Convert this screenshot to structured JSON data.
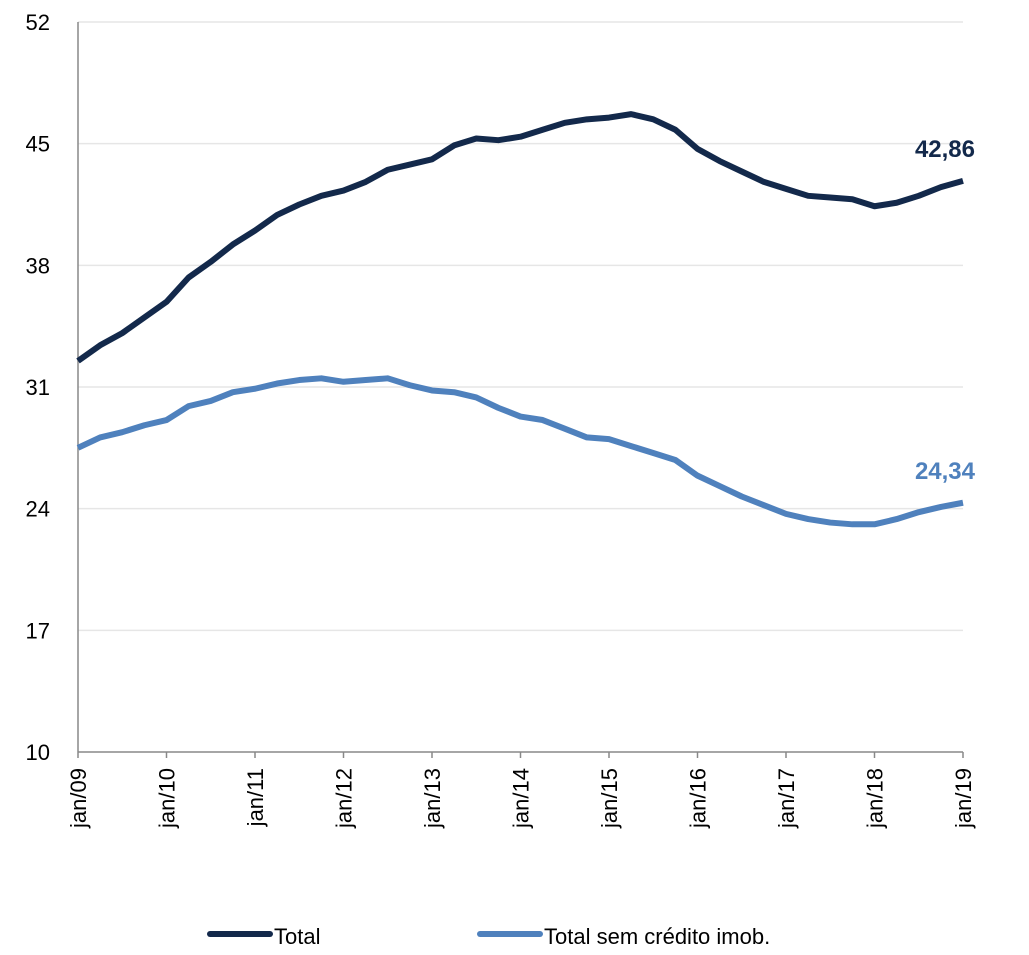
{
  "chart_data": {
    "type": "line",
    "categories": [
      "jan/09",
      null,
      null,
      null,
      "jan/10",
      null,
      null,
      null,
      "jan/11",
      null,
      null,
      null,
      "jan/12",
      null,
      null,
      null,
      "jan/13",
      null,
      null,
      null,
      "jan/14",
      null,
      null,
      null,
      "jan/15",
      null,
      null,
      null,
      "jan/16",
      null,
      null,
      null,
      "jan/17",
      null,
      null,
      null,
      "jan/18",
      null,
      null,
      null,
      "jan/19"
    ],
    "series": [
      {
        "name": "Total",
        "color": "#13294b",
        "values": [
          32.5,
          33.4,
          34.1,
          35.0,
          35.9,
          37.3,
          38.2,
          39.2,
          40.0,
          40.9,
          41.5,
          42.0,
          42.3,
          42.8,
          43.5,
          43.8,
          44.1,
          44.9,
          45.3,
          45.2,
          45.4,
          45.8,
          46.2,
          46.4,
          46.5,
          46.7,
          46.4,
          45.8,
          44.7,
          44.0,
          43.4,
          42.8,
          42.4,
          42.0,
          41.9,
          41.8,
          41.4,
          41.6,
          42.0,
          42.5,
          42.86
        ],
        "value_labels": [
          null,
          null,
          null,
          null,
          null,
          null,
          null,
          null,
          null,
          null,
          null,
          null,
          null,
          null,
          null,
          null,
          null,
          null,
          null,
          null,
          null,
          null,
          null,
          null,
          null,
          null,
          null,
          null,
          null,
          null,
          null,
          null,
          null,
          null,
          null,
          null,
          null,
          null,
          null,
          null,
          "42,86"
        ]
      },
      {
        "name": "Total sem crédito imob.",
        "color": "#4f81bd",
        "values": [
          27.5,
          28.1,
          28.4,
          28.8,
          29.1,
          29.9,
          30.2,
          30.7,
          30.9,
          31.2,
          31.4,
          31.5,
          31.3,
          31.4,
          31.5,
          31.1,
          30.8,
          30.7,
          30.4,
          29.8,
          29.3,
          29.1,
          28.6,
          28.1,
          28.0,
          27.6,
          27.2,
          26.8,
          25.9,
          25.3,
          24.7,
          24.2,
          23.7,
          23.4,
          23.2,
          23.1,
          23.1,
          23.4,
          23.8,
          24.1,
          24.34
        ],
        "value_labels": [
          null,
          null,
          null,
          null,
          null,
          null,
          null,
          null,
          null,
          null,
          null,
          null,
          null,
          null,
          null,
          null,
          null,
          null,
          null,
          null,
          null,
          null,
          null,
          null,
          null,
          null,
          null,
          null,
          null,
          null,
          null,
          null,
          null,
          null,
          null,
          null,
          null,
          null,
          null,
          null,
          "24,34"
        ]
      }
    ],
    "ylim": [
      10,
      52
    ],
    "yticks": [
      10,
      17,
      24,
      31,
      38,
      45,
      52
    ],
    "grid": true,
    "legend": "bottom"
  }
}
